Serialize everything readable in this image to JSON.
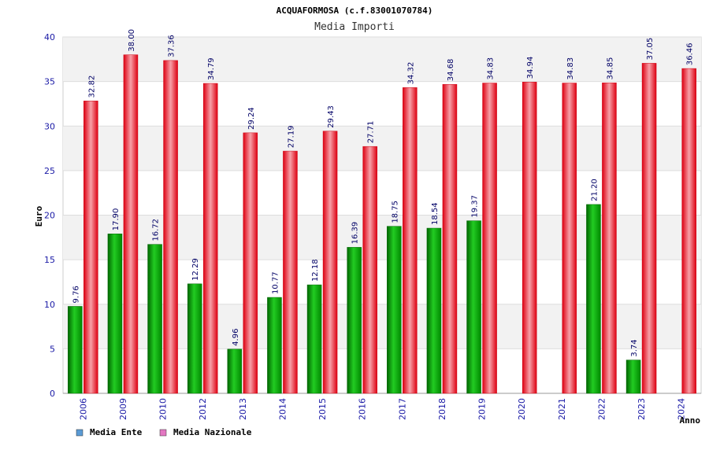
{
  "chart_data": {
    "type": "bar",
    "title": "ACQUAFORMOSA (c.f.83001070784)",
    "subtitle": "Media Importi",
    "xlabel": "Anno",
    "ylabel": "Euro",
    "ylim": [
      0,
      40
    ],
    "yticks": [
      0,
      5,
      10,
      15,
      20,
      25,
      30,
      35,
      40
    ],
    "grid": true,
    "legend_position": "bottom-left",
    "categories": [
      "2006",
      "2009",
      "2010",
      "2012",
      "2013",
      "2014",
      "2015",
      "2016",
      "2017",
      "2018",
      "2019",
      "2020",
      "2021",
      "2022",
      "2023",
      "2024"
    ],
    "series": [
      {
        "name": "Media Ente",
        "legend_color": "#5b9bd5",
        "bar_color": "#00aa00",
        "values": [
          9.76,
          17.9,
          16.72,
          12.29,
          4.96,
          10.77,
          12.18,
          16.39,
          18.75,
          18.54,
          19.37,
          null,
          null,
          21.2,
          3.74,
          null
        ],
        "labels": [
          "9.76",
          "17.90",
          "16.72",
          "12.29",
          "4.96",
          "10.77",
          "12.18",
          "16.39",
          "18.75",
          "18.54",
          "19.37",
          "",
          "",
          "21.20",
          "3.74",
          ""
        ]
      },
      {
        "name": "Media Nazionale",
        "legend_color": "#e377c2",
        "bar_color": "#ee1122",
        "values": [
          32.82,
          38.0,
          37.36,
          34.79,
          29.24,
          27.19,
          29.43,
          27.71,
          34.32,
          34.68,
          34.83,
          34.94,
          34.83,
          34.85,
          37.05,
          36.46
        ],
        "labels": [
          "32.82",
          "38.00",
          "37.36",
          "34.79",
          "29.24",
          "27.19",
          "29.43",
          "27.71",
          "34.32",
          "34.68",
          "34.83",
          "34.94",
          "34.83",
          "34.85",
          "37.05",
          "36.46"
        ]
      }
    ]
  }
}
